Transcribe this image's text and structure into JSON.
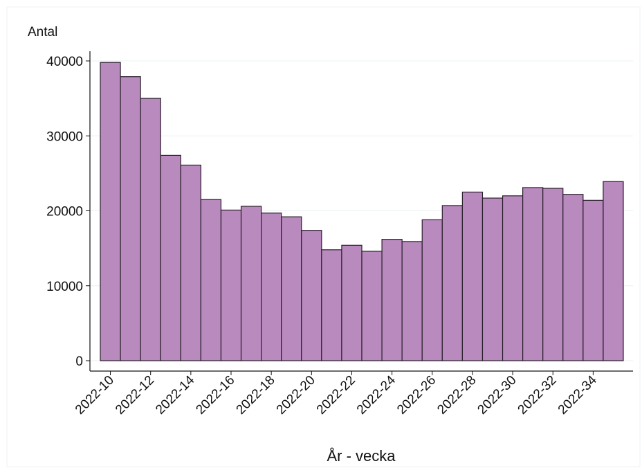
{
  "chart_data": {
    "type": "bar",
    "y_label": "Antal",
    "x_label": "År - vecka",
    "categories": [
      "2022-10",
      null,
      "2022-12",
      null,
      "2022-14",
      null,
      "2022-16",
      null,
      "2022-18",
      null,
      "2022-20",
      null,
      "2022-22",
      null,
      "2022-24",
      null,
      "2022-26",
      null,
      "2022-28",
      null,
      "2022-30",
      null,
      "2022-32",
      null,
      "2022-34",
      null
    ],
    "values": [
      39800,
      37900,
      35000,
      27400,
      26100,
      21500,
      20100,
      20600,
      19700,
      19200,
      17400,
      14800,
      15400,
      14600,
      16200,
      15900,
      18800,
      20700,
      22500,
      21700,
      22000,
      23100,
      23000,
      22200,
      21400,
      23900
    ],
    "color": "#b98abd",
    "ylim": [
      0,
      40000
    ],
    "yticks": [
      0,
      10000,
      20000,
      30000,
      40000
    ],
    "grid": true
  }
}
